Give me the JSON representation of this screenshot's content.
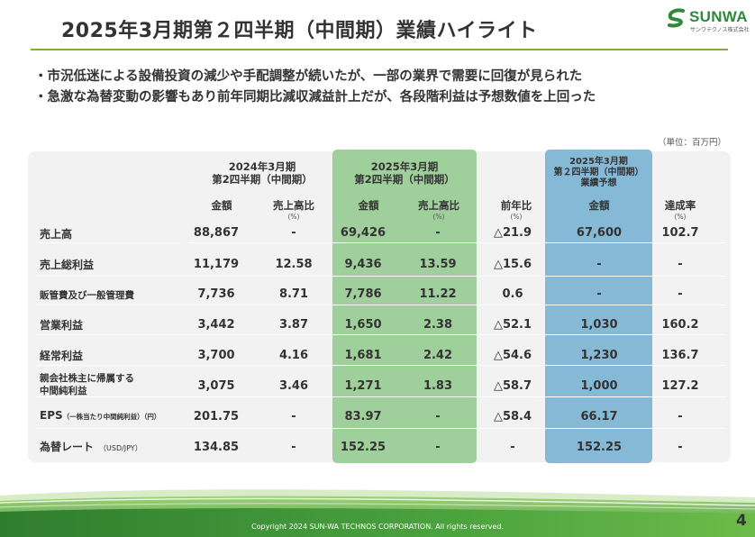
{
  "title": "2025年3月期第２四半期（中間期）業績ハイライト",
  "logo": {
    "name": "SUNWA",
    "sub": "サンワテクノス株式会社"
  },
  "bullets": [
    "・市況低迷による設備投資の減少や手配調整が続いたが、一部の業界で需要に回復が見られた",
    "・急激な為替変動の影響もあり前年同期比減収減益計上だが、各段階利益は予想数値を上回った"
  ],
  "unit": "（単位：百万円）",
  "colors": {
    "accent_green": "#7aad3a",
    "highlight_current": "#9fcf9b",
    "highlight_forecast": "#86b9d6",
    "panel": "#f2f2f2"
  },
  "table": {
    "groups": {
      "prev": [
        "2024年3月期",
        "第2四半期（中間期）"
      ],
      "curr": [
        "2025年3月期",
        "第2四半期（中間期）"
      ],
      "forecast": [
        "2025年3月期",
        "第２四半期（中間期）",
        "業績予想"
      ]
    },
    "columns": {
      "amount": "金額",
      "ratio": "売上高比",
      "yoy": "前年比",
      "achievement": "達成率",
      "pct_unit": "(%)"
    },
    "rows": [
      {
        "label": "売上高",
        "label_sub": "",
        "values": [
          "88,867",
          "-",
          "69,426",
          "-",
          "△21.9",
          "67,600",
          "102.7"
        ]
      },
      {
        "label": "売上総利益",
        "label_sub": "",
        "values": [
          "11,179",
          "12.58",
          "9,436",
          "13.59",
          "△15.6",
          "-",
          "-"
        ]
      },
      {
        "label": "販管費及び一般管理費",
        "label_sub": "",
        "values": [
          "7,736",
          "8.71",
          "7,786",
          "11.22",
          "0.6",
          "-",
          "-"
        ]
      },
      {
        "label": "営業利益",
        "label_sub": "",
        "values": [
          "3,442",
          "3.87",
          "1,650",
          "2.38",
          "△52.1",
          "1,030",
          "160.2"
        ]
      },
      {
        "label": "経常利益",
        "label_sub": "",
        "values": [
          "3,700",
          "4.16",
          "1,681",
          "2.42",
          "△54.6",
          "1,230",
          "136.7"
        ]
      },
      {
        "label": "親会社株主に帰属する",
        "label_sub": "中間純利益",
        "values": [
          "3,075",
          "3.46",
          "1,271",
          "1.83",
          "△58.7",
          "1,000",
          "127.2"
        ]
      },
      {
        "label": "EPS",
        "label_sub": "（一株当たり中間純利益）（円）",
        "values": [
          "201.75",
          "-",
          "83.97",
          "-",
          "△58.4",
          "66.17",
          "-"
        ]
      },
      {
        "label": "為替レート",
        "label_sub": "（USD/JPY）",
        "values": [
          "134.85",
          "-",
          "152.25",
          "-",
          "-",
          "152.25",
          "-"
        ]
      }
    ]
  },
  "footer": {
    "copyright": "Copyright 2024 SUN-WA TECHNOS CORPORATION. All rights reserved.",
    "page": "4"
  }
}
